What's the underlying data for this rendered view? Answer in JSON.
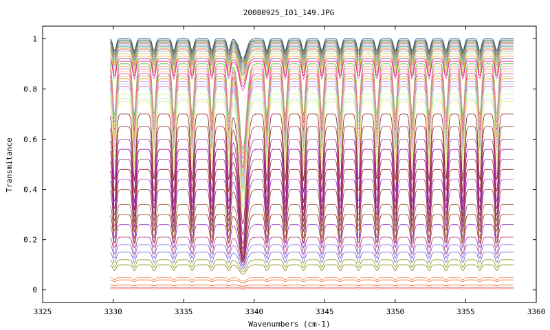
{
  "chart_data": {
    "type": "line",
    "title": "20080925_I01_149.JPG",
    "xlabel": "Wavenumbers (cm-1)",
    "ylabel": "Transmitance",
    "xlim": [
      3325,
      3360
    ],
    "ylim": [
      -0.05,
      1.05
    ],
    "x_ticks": [
      "3325",
      "3330",
      "3335",
      "3340",
      "3345",
      "3350",
      "3355",
      "3360"
    ],
    "y_ticks": [
      "0",
      "0.2",
      "0.4",
      "0.6",
      "0.8",
      "1"
    ],
    "grid": false,
    "legend": "none",
    "data_range": [
      3329.8,
      3358.4
    ],
    "absorption_lines": [
      3330.1,
      3331.5,
      3332.9,
      3334.3,
      3335.6,
      3337.0,
      3338.2,
      3339.2,
      3340.9,
      3342.2,
      3343.5,
      3344.8,
      3346.1,
      3347.4,
      3348.7,
      3350.0,
      3351.2,
      3352.4,
      3353.6,
      3354.8,
      3356.0,
      3357.2
    ],
    "series_baselines": [
      1.0,
      0.995,
      0.99,
      0.985,
      0.98,
      0.975,
      0.97,
      0.965,
      0.96,
      0.955,
      0.95,
      0.94,
      0.93,
      0.92,
      0.91,
      0.9,
      0.89,
      0.88,
      0.87,
      0.86,
      0.85,
      0.84,
      0.83,
      0.82,
      0.81,
      0.8,
      0.78,
      0.76,
      0.75,
      0.7,
      0.65,
      0.6,
      0.56,
      0.52,
      0.48,
      0.44,
      0.4,
      0.34,
      0.3,
      0.26,
      0.21,
      0.18,
      0.15,
      0.12,
      0.1,
      0.05,
      0.04,
      0.02,
      0.01,
      0.005
    ],
    "series_colors": [
      "#1f3d99",
      "#2e8b57",
      "#444444",
      "#999933",
      "#cc6699",
      "#669999",
      "#6699cc",
      "#99cc66",
      "#cc9966",
      "#ff6666",
      "#66cccc",
      "#cccc33",
      "#ff9933",
      "#993399",
      "#ff3399",
      "#33cc33",
      "#ff9966",
      "#cc66cc",
      "#ffcc66",
      "#ff0099",
      "#99cc99",
      "#ff9900",
      "#cc99ff",
      "#99ccff",
      "#ff6699",
      "#a6e6e6",
      "#ccff66",
      "#b0e0e6",
      "#ffe680",
      "#8b1a1a",
      "#993333",
      "#993399",
      "#990099",
      "#993366",
      "#a52a2a",
      "#9933cc",
      "#8b3a3a",
      "#a0522d",
      "#8b2500",
      "#9932cc",
      "#b03060",
      "#7b68ee",
      "#6a5acd",
      "#8b8b00",
      "#808000",
      "#ff7f50",
      "#d2691e",
      "#ff4500",
      "#cd5c5c",
      "#ff6347"
    ]
  }
}
